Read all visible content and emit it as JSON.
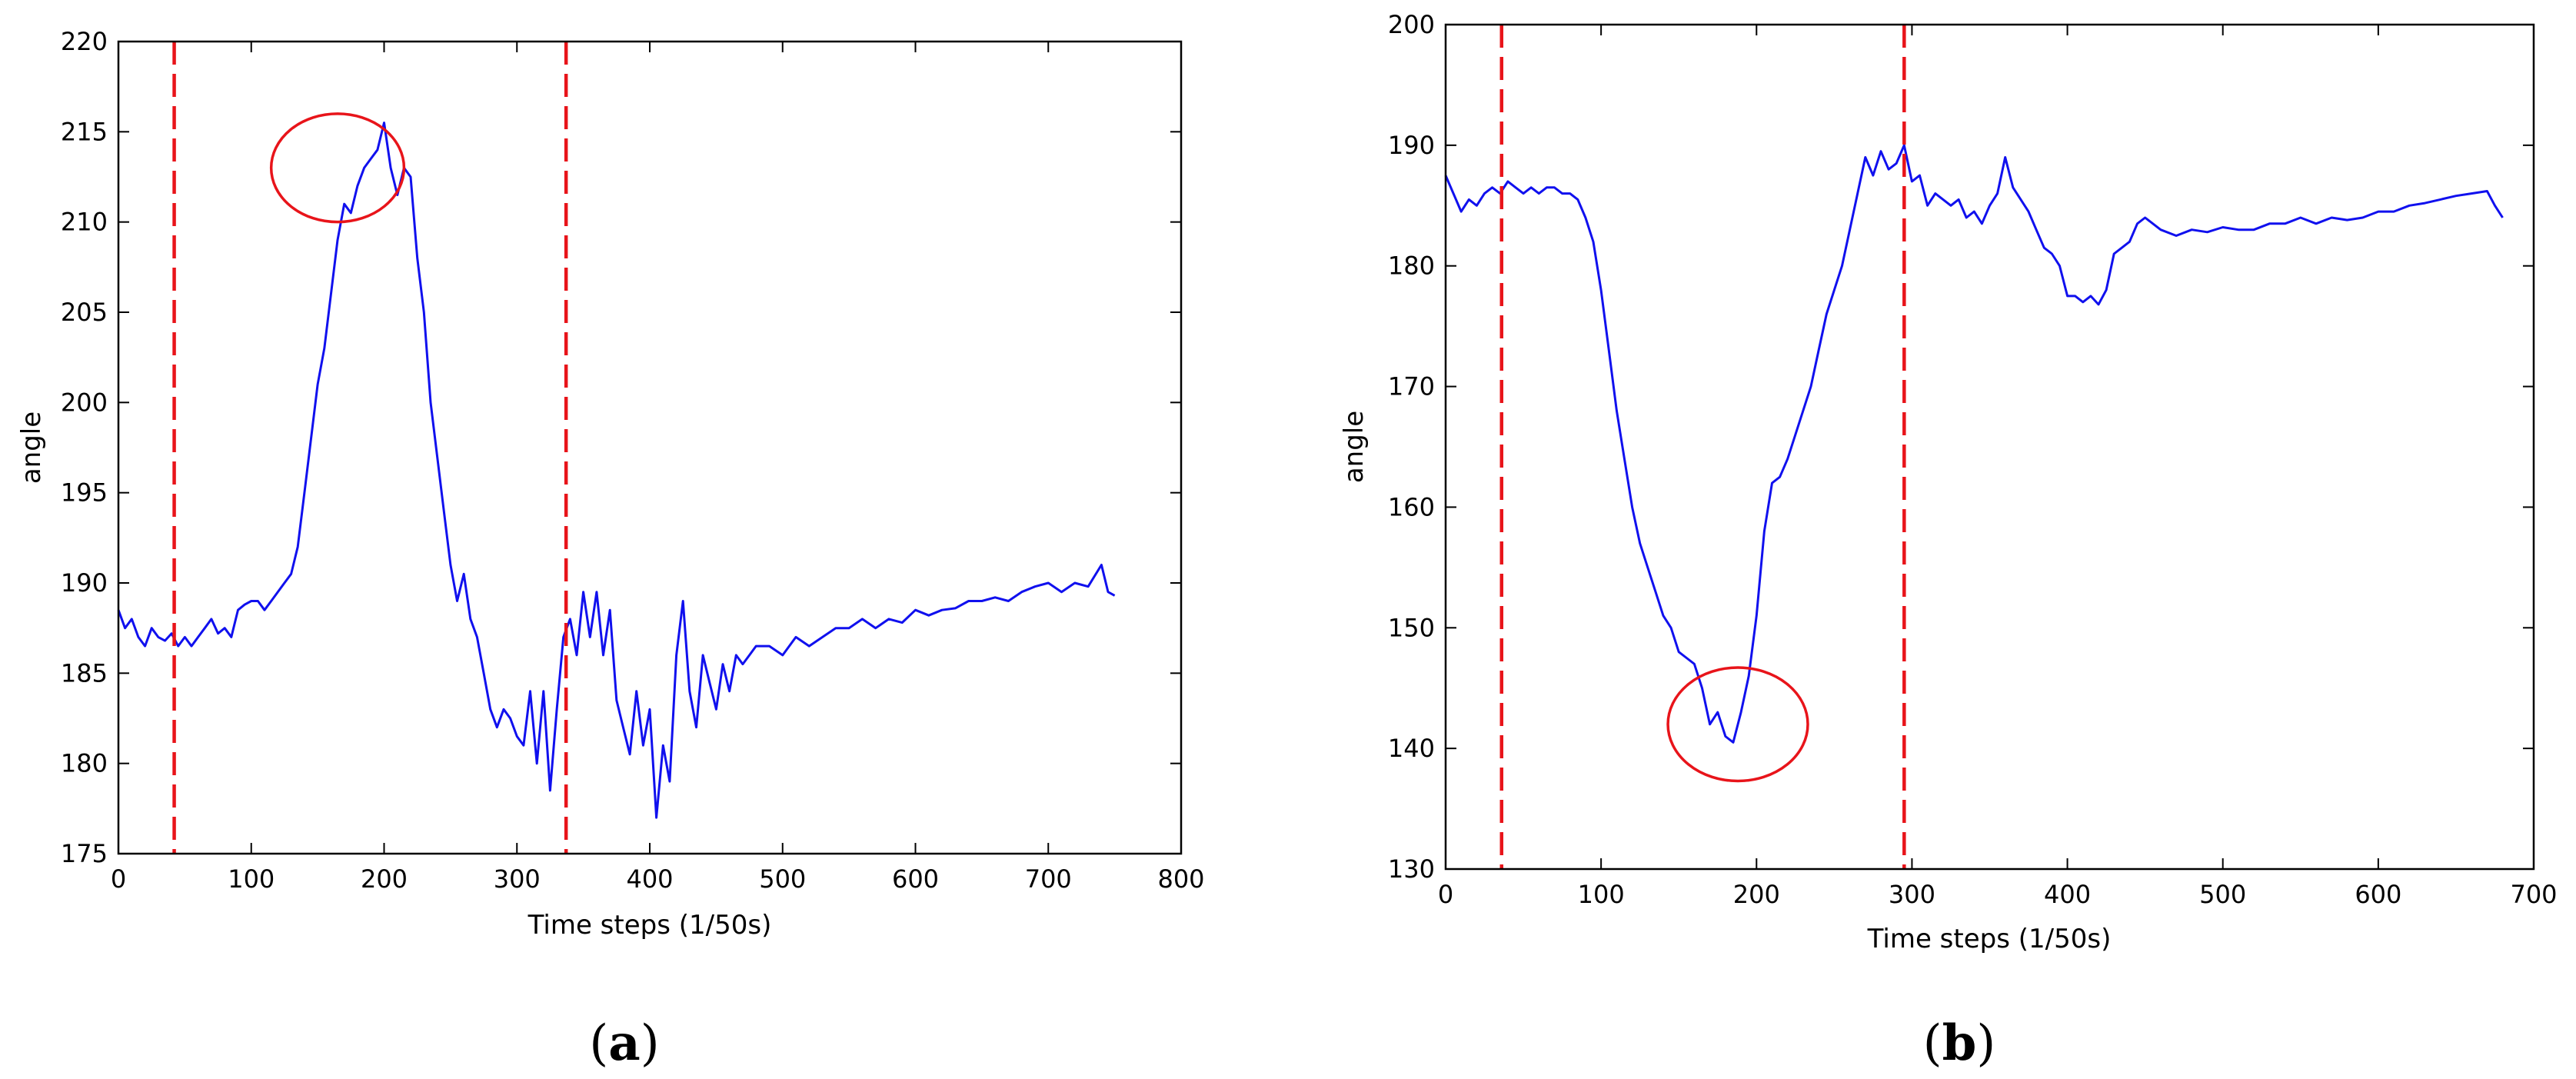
{
  "colors": {
    "series": "#1010ee",
    "annotation": "#e8141a"
  },
  "chart_data": [
    {
      "type": "line",
      "panel_label": "a",
      "xlabel": "Time steps (1/50s)",
      "ylabel": "angle",
      "xlim": [
        0,
        800
      ],
      "ylim": [
        175,
        220
      ],
      "x_ticks": [
        0,
        100,
        200,
        300,
        400,
        500,
        600,
        700,
        800
      ],
      "y_ticks": [
        175,
        180,
        185,
        190,
        195,
        200,
        205,
        210,
        215,
        220
      ],
      "grid": false,
      "vertical_markers": [
        42,
        337
      ],
      "circle_annotation": {
        "cx": 165,
        "cy": 213,
        "rx": 50,
        "ry": 3
      },
      "series": [
        {
          "x": [
            0,
            5,
            10,
            15,
            20,
            25,
            30,
            35,
            40,
            45,
            50,
            55,
            60,
            65,
            70,
            75,
            80,
            85,
            90,
            95,
            100,
            105,
            110,
            115,
            120,
            125,
            130,
            135,
            140,
            145,
            150,
            155,
            160,
            165,
            170,
            175,
            180,
            185,
            190,
            195,
            200,
            205,
            210,
            215,
            220,
            225,
            230,
            235,
            240,
            245,
            250,
            255,
            260,
            265,
            270,
            275,
            280,
            285,
            290,
            295,
            300,
            305,
            310,
            315,
            320,
            325,
            330,
            335,
            340,
            345,
            350,
            355,
            360,
            365,
            370,
            375,
            380,
            385,
            390,
            395,
            400,
            405,
            410,
            415,
            420,
            425,
            430,
            435,
            440,
            445,
            450,
            455,
            460,
            465,
            470,
            475,
            480,
            490,
            500,
            510,
            520,
            530,
            540,
            550,
            560,
            570,
            580,
            590,
            600,
            610,
            620,
            630,
            640,
            650,
            660,
            670,
            680,
            690,
            700,
            710,
            720,
            730,
            740,
            745,
            750
          ],
          "values": [
            188.5,
            187.5,
            188,
            187,
            186.5,
            187.5,
            187,
            186.8,
            187.2,
            186.5,
            187,
            186.5,
            187,
            187.5,
            188,
            187.2,
            187.5,
            187,
            188.5,
            188.8,
            189,
            189,
            188.5,
            189,
            189.5,
            190,
            190.5,
            192,
            195,
            198,
            201,
            203,
            206,
            209,
            211,
            210.5,
            212,
            213,
            213.5,
            214,
            215.5,
            213,
            211.5,
            213,
            212.5,
            208,
            205,
            200,
            197,
            194,
            191,
            189,
            190.5,
            188,
            187,
            185,
            183,
            182,
            183,
            182.5,
            181.5,
            181,
            184,
            180,
            184,
            178.5,
            183,
            187,
            188,
            186,
            189.5,
            187,
            189.5,
            186,
            188.5,
            183.5,
            182,
            180.5,
            184,
            181,
            183,
            177,
            181,
            179,
            186,
            189,
            184,
            182,
            186,
            184.5,
            183,
            185.5,
            184,
            186,
            185.5,
            186,
            186.5,
            186.5,
            186,
            187,
            186.5,
            187,
            187.5,
            187.5,
            188,
            187.5,
            188,
            187.8,
            188.5,
            188.2,
            188.5,
            188.6,
            189,
            189,
            189.2,
            189,
            189.5,
            189.8,
            190,
            189.5,
            190,
            189.8,
            191,
            189.5,
            189.3
          ]
        }
      ]
    },
    {
      "type": "line",
      "panel_label": "b",
      "xlabel": "Time steps (1/50s)",
      "ylabel": "angle",
      "xlim": [
        0,
        700
      ],
      "ylim": [
        130,
        200
      ],
      "x_ticks": [
        0,
        100,
        200,
        300,
        400,
        500,
        600,
        700
      ],
      "y_ticks": [
        130,
        140,
        150,
        160,
        170,
        180,
        190,
        200
      ],
      "grid": false,
      "vertical_markers": [
        36,
        295
      ],
      "circle_annotation": {
        "cx": 188,
        "cy": 142,
        "rx": 45,
        "ry": 4.7
      },
      "series": [
        {
          "x": [
            0,
            5,
            10,
            15,
            20,
            25,
            30,
            35,
            40,
            45,
            50,
            55,
            60,
            65,
            70,
            75,
            80,
            85,
            90,
            95,
            100,
            105,
            110,
            115,
            120,
            125,
            130,
            135,
            140,
            145,
            150,
            155,
            160,
            165,
            170,
            175,
            180,
            185,
            190,
            195,
            200,
            205,
            210,
            215,
            220,
            225,
            230,
            235,
            240,
            245,
            250,
            255,
            260,
            265,
            270,
            275,
            280,
            285,
            290,
            295,
            300,
            305,
            310,
            315,
            320,
            325,
            330,
            335,
            340,
            345,
            350,
            355,
            360,
            365,
            370,
            375,
            380,
            385,
            390,
            395,
            400,
            405,
            410,
            415,
            420,
            425,
            430,
            435,
            440,
            445,
            450,
            460,
            470,
            480,
            490,
            500,
            510,
            520,
            530,
            540,
            550,
            560,
            570,
            580,
            590,
            600,
            610,
            620,
            630,
            640,
            650,
            660,
            670,
            675,
            680
          ],
          "values": [
            187.5,
            186,
            184.5,
            185.5,
            185,
            186,
            186.5,
            186,
            187,
            186.5,
            186,
            186.5,
            186,
            186.5,
            186.5,
            186,
            186,
            185.5,
            184,
            182,
            178,
            173,
            168,
            164,
            160,
            157,
            155,
            153,
            151,
            150,
            148,
            147.5,
            147,
            145,
            142,
            143,
            141,
            140.5,
            143,
            146,
            151,
            158,
            162,
            162.5,
            164,
            166,
            168,
            170,
            173,
            176,
            178,
            180,
            183,
            186,
            189,
            187.5,
            189.5,
            188,
            188.5,
            190,
            187,
            187.5,
            185,
            186,
            185.5,
            185,
            185.5,
            184,
            184.5,
            183.5,
            185,
            186,
            189,
            186.5,
            185.5,
            184.5,
            183,
            181.5,
            181,
            180,
            177.5,
            177.5,
            177,
            177.5,
            176.8,
            178,
            181,
            181.5,
            182,
            183.5,
            184,
            183,
            182.5,
            183,
            182.8,
            183.2,
            183,
            183,
            183.5,
            183.5,
            184,
            183.5,
            184,
            183.8,
            184,
            184.5,
            184.5,
            185,
            185.2,
            185.5,
            185.8,
            186,
            186.2,
            185,
            184
          ]
        }
      ]
    }
  ]
}
